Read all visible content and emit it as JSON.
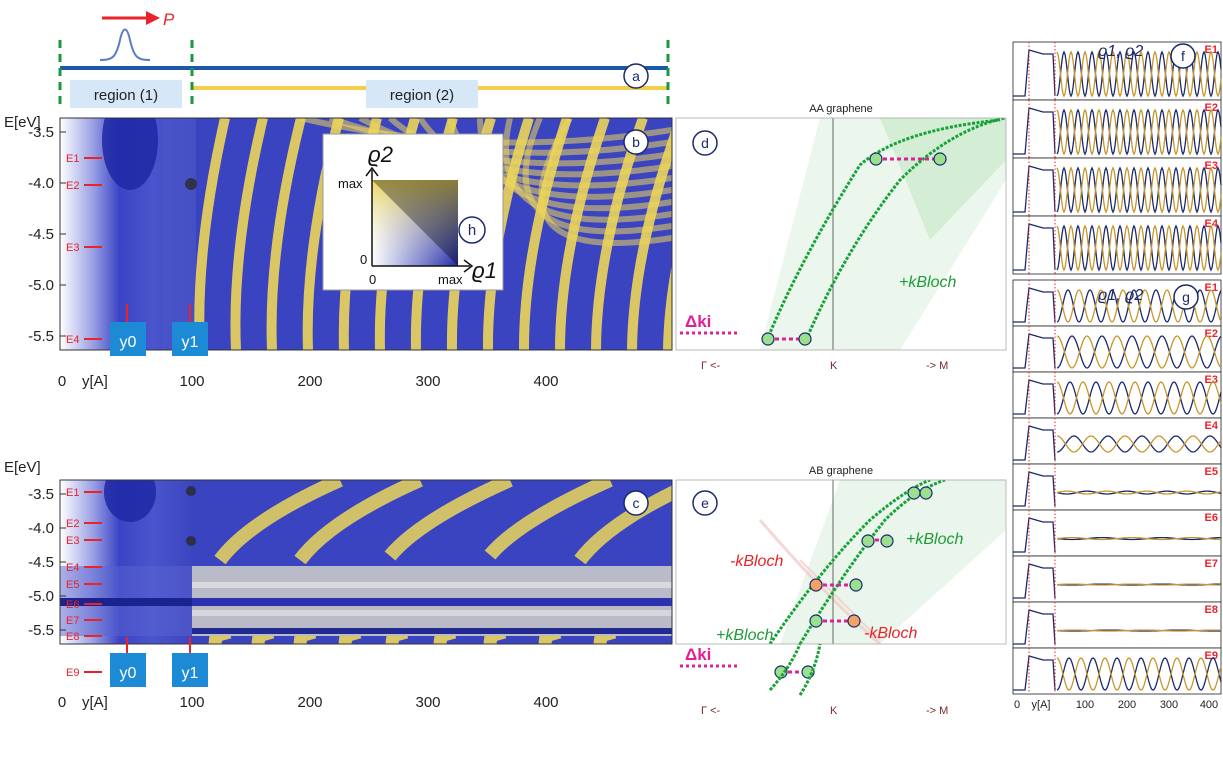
{
  "top": {
    "arrow_label": "P",
    "region1": "region (1)",
    "region2": "region (2)",
    "badge": "a"
  },
  "energy_axis_label": "E[eV]",
  "y_axis_label": "y[A]",
  "panel_b": {
    "badge": "b",
    "yticks": [
      "-3.5",
      "-4.0",
      "-4.5",
      "-5.0",
      "-5.5"
    ],
    "xticks": [
      "0",
      "100",
      "200",
      "300",
      "400"
    ],
    "energies": [
      "E1",
      "E2",
      "E3",
      "E4"
    ],
    "markers": [
      "y0",
      "y1"
    ]
  },
  "panel_c": {
    "badge": "c",
    "yticks": [
      "-3.5",
      "-4.0",
      "-4.5",
      "-5.0",
      "-5.5"
    ],
    "xticks": [
      "0",
      "100",
      "200",
      "300",
      "400"
    ],
    "energies": [
      "E1",
      "E2",
      "E3",
      "E4",
      "E5",
      "E6",
      "E7",
      "E8",
      "E9"
    ],
    "markers": [
      "y0",
      "y1"
    ]
  },
  "legend_h": {
    "badge": "h",
    "rho2": "ϱ2",
    "rho1": "ϱ1",
    "max_top": "max",
    "max_right": "max",
    "zero_left": "0",
    "zero_bottom": "0"
  },
  "panel_d": {
    "title": "AA graphene",
    "badge": "d",
    "kbloch_plus": "+kBloch",
    "delta_k": "Δki",
    "xlabels": [
      "Γ <-",
      "K",
      "-> M"
    ]
  },
  "panel_e": {
    "title": "AB graphene",
    "badge": "e",
    "kbloch_plus_a": "+kBloch",
    "kbloch_plus_b": "+kBloch",
    "kbloch_minus_a": "-kBloch",
    "kbloch_minus_b": "-kBloch",
    "delta_k": "Δki",
    "xlabels": [
      "Γ <-",
      "K",
      "-> M"
    ]
  },
  "panel_f": {
    "badge": "f",
    "legend": "ϱ1, ϱ2",
    "rows": [
      "E1",
      "E2",
      "E3",
      "E4"
    ],
    "xticks": [
      "0",
      "y[A]",
      "100",
      "200",
      "300",
      "400"
    ]
  },
  "panel_g": {
    "badge": "g",
    "legend": "ϱ1, ϱ2",
    "rows": [
      "E1",
      "E2",
      "E3",
      "E4",
      "E5",
      "E6",
      "E7",
      "E8",
      "E9"
    ],
    "xticks": [
      "0",
      "y[A]",
      "100",
      "200",
      "300",
      "400"
    ]
  },
  "colors": {
    "blue": "#2b33b8",
    "yellow": "#e9d24f",
    "green": "#1e9a3a",
    "magenta": "#e0209a",
    "red": "#e8232a",
    "navy": "#1a2a6c",
    "gold": "#c8962a"
  }
}
